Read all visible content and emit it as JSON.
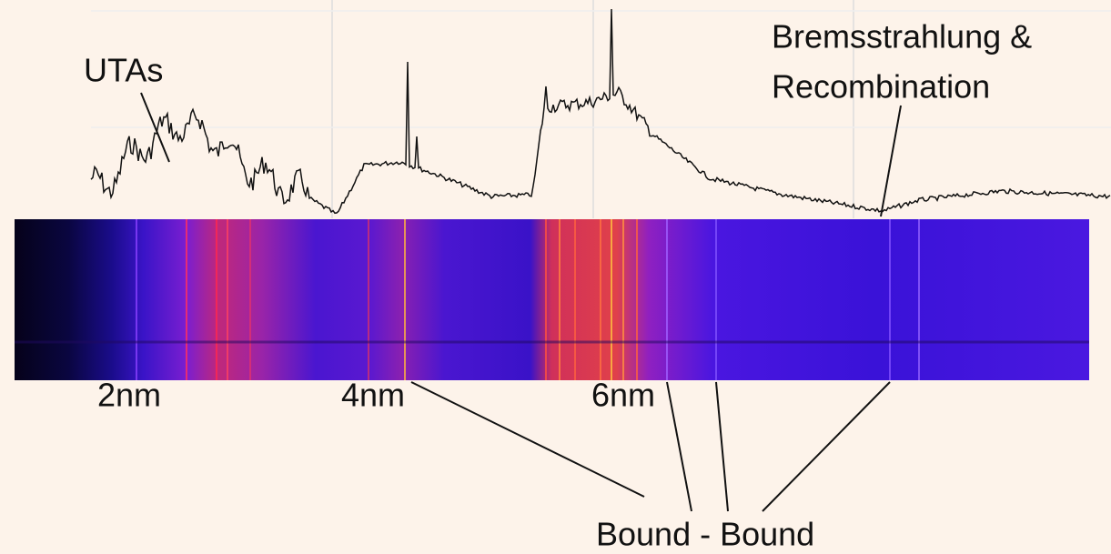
{
  "labels": {
    "utas": "UTAs",
    "bremsstrahlung_line1": "Bremsstrahlung &",
    "bremsstrahlung_line2": "Recombination",
    "bound_bound": "Bound - Bound"
  },
  "wavelength_labels": [
    "2nm",
    "4nm",
    "6nm"
  ]
}
